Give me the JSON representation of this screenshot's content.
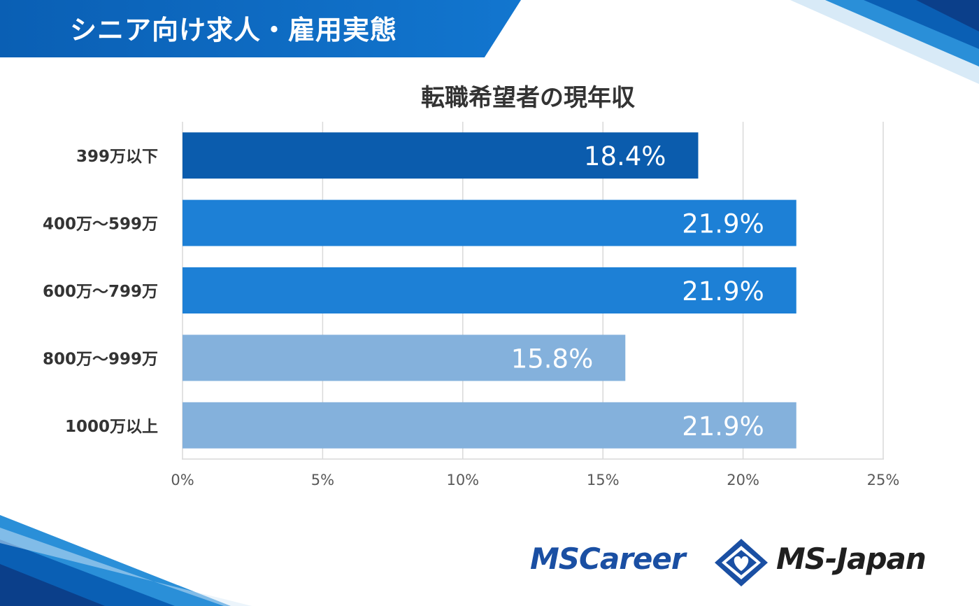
{
  "header": {
    "title": "シニア向け求人・雇用実態"
  },
  "chart_data": {
    "type": "bar",
    "orientation": "horizontal",
    "title": "転職希望者の現年収",
    "categories": [
      "399万以下",
      "400万～599万",
      "600万～799万",
      "800万～999万",
      "1000万以上"
    ],
    "values": [
      18.4,
      21.9,
      21.9,
      15.8,
      21.9
    ],
    "data_labels": [
      "18.4%",
      "21.9%",
      "21.9%",
      "15.8%",
      "21.9%"
    ],
    "bar_colors": [
      "#0b5cad",
      "#1d80d6",
      "#1d80d6",
      "#84b1dc",
      "#84b1dc"
    ],
    "xlim": [
      0,
      25
    ],
    "x_ticks": [
      0,
      5,
      10,
      15,
      20,
      25
    ],
    "x_tick_labels": [
      "0%",
      "5%",
      "10%",
      "15%",
      "20%",
      "25%"
    ],
    "grid": true,
    "xlabel": "",
    "ylabel": ""
  },
  "footer": {
    "logo_left": "MSCareer",
    "logo_right": "MS-Japan"
  },
  "colors": {
    "brand_blue": "#0a5fb4",
    "light_blue": "#1d80d6",
    "pale_blue": "#84b1dc"
  }
}
